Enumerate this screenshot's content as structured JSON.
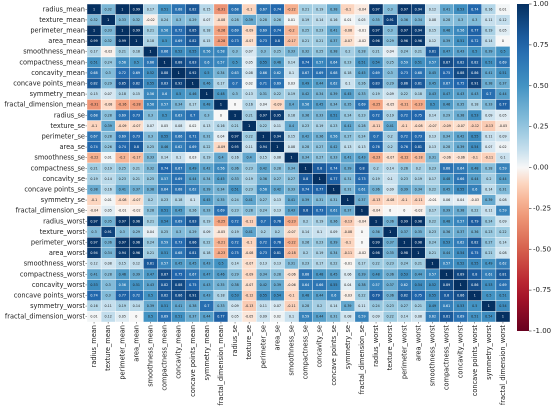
{
  "chart_data": {
    "type": "heatmap",
    "title": "",
    "xlabel": "",
    "ylabel": "",
    "variables": [
      "radius_mean",
      "texture_mean",
      "perimeter_mean",
      "area_mean",
      "smoothness_mean",
      "compactness_mean",
      "concavity_mean",
      "concave points_mean",
      "symmetry_mean",
      "fractal_dimension_mean",
      "radius_se",
      "texture_se",
      "perimeter_se",
      "area_se",
      "smoothness_se",
      "compactness_se",
      "concavity_se",
      "concave points_se",
      "symmetry_se",
      "fractal_dimension_se",
      "radius_worst",
      "texture_worst",
      "perimeter_worst",
      "area_worst",
      "smoothness_worst",
      "compactness_worst",
      "concavity_worst",
      "concave points_worst",
      "symmetry_worst",
      "fractal_dimension_worst"
    ],
    "matrix": [
      [
        1,
        0.32,
        1,
        0.99,
        0.17,
        0.51,
        0.68,
        0.82,
        0.15,
        -0.31,
        0.68,
        -0.1,
        0.67,
        0.74,
        -0.22,
        0.21,
        0.19,
        0.38,
        -0.1,
        -0.04,
        0.97,
        0.3,
        0.97,
        0.94,
        0.12,
        0.41,
        0.53,
        0.74,
        0.16,
        0.01
      ],
      [
        0.32,
        1,
        0.33,
        0.32,
        -0.02,
        0.24,
        0.3,
        0.29,
        0.07,
        -0.08,
        0.28,
        0.39,
        0.28,
        0.26,
        0.01,
        0.19,
        0.14,
        0.16,
        0.01,
        0.05,
        0.35,
        0.91,
        0.36,
        0.34,
        0.08,
        0.28,
        0.3,
        0.3,
        0.11,
        0.12
      ],
      [
        1,
        0.33,
        1,
        0.99,
        0.21,
        0.56,
        0.72,
        0.85,
        0.18,
        -0.26,
        0.69,
        -0.09,
        0.69,
        0.74,
        -0.2,
        0.25,
        0.23,
        0.41,
        -0.08,
        -0.01,
        0.97,
        0.3,
        0.97,
        0.94,
        0.15,
        0.46,
        0.56,
        0.77,
        0.19,
        0.05
      ],
      [
        0.99,
        0.32,
        0.99,
        1,
        0.18,
        0.5,
        0.69,
        0.82,
        0.15,
        -0.28,
        0.73,
        -0.07,
        0.73,
        0.8,
        -0.17,
        0.21,
        0.21,
        0.37,
        -0.07,
        -0.02,
        0.96,
        0.29,
        0.96,
        0.96,
        0.12,
        0.39,
        0.51,
        0.72,
        0.14,
        0
      ],
      [
        0.17,
        -0.02,
        0.21,
        0.18,
        1,
        0.66,
        0.52,
        0.55,
        0.56,
        0.58,
        0.3,
        0.07,
        0.3,
        0.25,
        0.33,
        0.32,
        0.25,
        0.38,
        0.2,
        0.28,
        0.21,
        0.04,
        0.24,
        0.21,
        0.81,
        0.47,
        0.43,
        0.5,
        0.39,
        0.5
      ],
      [
        0.51,
        0.24,
        0.56,
        0.5,
        0.66,
        1,
        0.88,
        0.83,
        0.6,
        0.57,
        0.5,
        0.05,
        0.55,
        0.46,
        0.14,
        0.74,
        0.57,
        0.64,
        0.23,
        0.51,
        0.54,
        0.25,
        0.59,
        0.51,
        0.57,
        0.87,
        0.82,
        0.82,
        0.51,
        0.69
      ],
      [
        0.68,
        0.3,
        0.72,
        0.69,
        0.52,
        0.88,
        1,
        0.92,
        0.5,
        0.34,
        0.63,
        0.08,
        0.66,
        0.62,
        0.1,
        0.67,
        0.69,
        0.68,
        0.18,
        0.45,
        0.69,
        0.3,
        0.73,
        0.68,
        0.45,
        0.75,
        0.88,
        0.86,
        0.41,
        0.51
      ],
      [
        0.82,
        0.29,
        0.85,
        0.82,
        0.55,
        0.83,
        0.92,
        1,
        0.46,
        0.17,
        0.7,
        0.02,
        0.71,
        0.69,
        0.03,
        0.49,
        0.44,
        0.62,
        0.1,
        0.26,
        0.83,
        0.29,
        0.86,
        0.81,
        0.45,
        0.67,
        0.75,
        0.91,
        0.38,
        0.37
      ],
      [
        0.15,
        0.07,
        0.18,
        0.15,
        0.56,
        0.6,
        0.5,
        0.46,
        1,
        0.48,
        0.3,
        0.13,
        0.31,
        0.22,
        0.19,
        0.42,
        0.34,
        0.39,
        0.45,
        0.33,
        0.19,
        0.09,
        0.22,
        0.18,
        0.43,
        0.47,
        0.43,
        0.43,
        0.7,
        0.44
      ],
      [
        -0.31,
        -0.08,
        -0.26,
        -0.28,
        0.58,
        0.57,
        0.34,
        0.17,
        0.48,
        1,
        0,
        0.16,
        0.04,
        -0.09,
        0.4,
        0.56,
        0.45,
        0.34,
        0.35,
        0.69,
        -0.25,
        -0.05,
        -0.21,
        -0.23,
        0.5,
        0.46,
        0.35,
        0.18,
        0.33,
        0.77
      ],
      [
        0.68,
        0.28,
        0.69,
        0.73,
        0.3,
        0.5,
        0.63,
        0.7,
        0.3,
        0,
        1,
        0.21,
        0.97,
        0.95,
        0.16,
        0.36,
        0.33,
        0.51,
        0.24,
        0.23,
        0.72,
        0.19,
        0.72,
        0.75,
        0.14,
        0.29,
        0.38,
        0.53,
        0.09,
        0.05
      ],
      [
        -0.1,
        0.39,
        -0.09,
        -0.07,
        0.07,
        0.05,
        0.08,
        0.02,
        0.13,
        0.16,
        0.21,
        1,
        0.22,
        0.11,
        0.4,
        0.23,
        0.19,
        0.23,
        0.41,
        0.28,
        -0.11,
        0.41,
        -0.1,
        -0.08,
        -0.07,
        -0.09,
        -0.07,
        -0.12,
        -0.13,
        -0.05
      ],
      [
        0.67,
        0.28,
        0.69,
        0.73,
        0.3,
        0.55,
        0.66,
        0.71,
        0.31,
        0.04,
        0.97,
        0.22,
        1,
        0.94,
        0.15,
        0.42,
        0.36,
        0.56,
        0.27,
        0.24,
        0.7,
        0.2,
        0.72,
        0.73,
        0.13,
        0.34,
        0.42,
        0.55,
        0.11,
        0.09
      ],
      [
        0.74,
        0.26,
        0.74,
        0.8,
        0.25,
        0.46,
        0.62,
        0.69,
        0.22,
        -0.09,
        0.95,
        0.11,
        0.94,
        1,
        0.08,
        0.28,
        0.27,
        0.42,
        0.13,
        0.13,
        0.76,
        0.2,
        0.76,
        0.81,
        0.13,
        0.28,
        0.39,
        0.54,
        0.07,
        0.02
      ],
      [
        -0.22,
        0.01,
        -0.2,
        -0.17,
        0.33,
        0.14,
        0.1,
        0.03,
        0.19,
        0.4,
        0.16,
        0.4,
        0.15,
        0.08,
        1,
        0.34,
        0.27,
        0.33,
        0.41,
        0.43,
        -0.23,
        -0.07,
        -0.22,
        -0.18,
        0.31,
        -0.06,
        -0.06,
        -0.1,
        -0.11,
        0.1
      ],
      [
        0.21,
        0.19,
        0.25,
        0.21,
        0.32,
        0.74,
        0.67,
        0.49,
        0.42,
        0.56,
        0.36,
        0.23,
        0.42,
        0.28,
        0.34,
        1,
        0.8,
        0.74,
        0.39,
        0.8,
        0.2,
        0.14,
        0.26,
        0.2,
        0.23,
        0.68,
        0.64,
        0.48,
        0.28,
        0.59
      ],
      [
        0.19,
        0.14,
        0.23,
        0.21,
        0.25,
        0.57,
        0.69,
        0.44,
        0.34,
        0.45,
        0.33,
        0.19,
        0.36,
        0.27,
        0.27,
        0.8,
        1,
        0.77,
        0.31,
        0.73,
        0.19,
        0.1,
        0.23,
        0.19,
        0.17,
        0.48,
        0.66,
        0.44,
        0.2,
        0.44
      ],
      [
        0.38,
        0.16,
        0.41,
        0.37,
        0.38,
        0.64,
        0.68,
        0.62,
        0.39,
        0.34,
        0.51,
        0.23,
        0.56,
        0.42,
        0.33,
        0.74,
        0.77,
        1,
        0.31,
        0.61,
        0.36,
        0.09,
        0.39,
        0.34,
        0.22,
        0.45,
        0.55,
        0.6,
        0.14,
        0.31
      ],
      [
        -0.1,
        0.01,
        -0.08,
        -0.07,
        0.2,
        0.23,
        0.18,
        0.1,
        0.45,
        0.35,
        0.24,
        0.41,
        0.27,
        0.13,
        0.41,
        0.39,
        0.31,
        0.31,
        1,
        0.37,
        -0.13,
        -0.08,
        -0.1,
        -0.11,
        -0.01,
        0.06,
        0.04,
        -0.03,
        0.39,
        0.08
      ],
      [
        -0.04,
        0.05,
        -0.01,
        -0.02,
        0.28,
        0.51,
        0.45,
        0.26,
        0.33,
        0.69,
        0.23,
        0.28,
        0.24,
        0.13,
        0.43,
        0.8,
        0.73,
        0.61,
        0.37,
        1,
        -0.04,
        0,
        0,
        -0.02,
        0.17,
        0.39,
        0.38,
        0.22,
        0.11,
        0.59
      ],
      [
        0.97,
        0.35,
        0.97,
        0.96,
        0.21,
        0.54,
        0.69,
        0.83,
        0.19,
        -0.25,
        0.72,
        -0.11,
        0.7,
        0.76,
        -0.23,
        0.2,
        0.19,
        0.36,
        -0.13,
        -0.04,
        1,
        0.36,
        0.99,
        0.98,
        0.22,
        0.48,
        0.57,
        0.79,
        0.24,
        0.09
      ],
      [
        0.3,
        0.91,
        0.3,
        0.29,
        0.04,
        0.25,
        0.3,
        0.29,
        0.09,
        -0.05,
        0.19,
        0.41,
        0.2,
        0.2,
        -0.07,
        0.14,
        0.1,
        0.09,
        -0.08,
        0,
        0.36,
        1,
        0.37,
        0.35,
        0.23,
        0.36,
        0.37,
        0.36,
        0.23,
        0.22
      ],
      [
        0.97,
        0.36,
        0.97,
        0.96,
        0.24,
        0.59,
        0.73,
        0.86,
        0.22,
        -0.21,
        0.72,
        -0.1,
        0.72,
        0.76,
        -0.22,
        0.26,
        0.23,
        0.39,
        -0.1,
        0,
        0.99,
        0.37,
        1,
        0.98,
        0.24,
        0.53,
        0.62,
        0.82,
        0.27,
        0.14
      ],
      [
        0.94,
        0.34,
        0.94,
        0.96,
        0.21,
        0.51,
        0.68,
        0.81,
        0.18,
        -0.23,
        0.75,
        -0.08,
        0.73,
        0.81,
        -0.18,
        0.2,
        0.19,
        0.34,
        -0.11,
        -0.02,
        0.98,
        0.35,
        0.98,
        1,
        0.21,
        0.44,
        0.54,
        0.75,
        0.21,
        0.08
      ],
      [
        0.12,
        0.08,
        0.15,
        0.12,
        0.81,
        0.57,
        0.45,
        0.45,
        0.43,
        0.5,
        0.14,
        -0.07,
        0.13,
        0.13,
        0.31,
        0.23,
        0.17,
        0.22,
        -0.01,
        0.17,
        0.22,
        0.23,
        0.24,
        0.21,
        1,
        0.57,
        0.52,
        0.55,
        0.49,
        0.62
      ],
      [
        0.41,
        0.28,
        0.46,
        0.39,
        0.47,
        0.87,
        0.75,
        0.67,
        0.47,
        0.46,
        0.29,
        -0.09,
        0.34,
        0.28,
        -0.06,
        0.68,
        0.48,
        0.45,
        0.06,
        0.39,
        0.48,
        0.36,
        0.53,
        0.44,
        0.57,
        1,
        0.89,
        0.8,
        0.61,
        0.81
      ],
      [
        0.53,
        0.3,
        0.56,
        0.51,
        0.43,
        0.82,
        0.88,
        0.75,
        0.43,
        0.35,
        0.38,
        -0.07,
        0.42,
        0.39,
        -0.06,
        0.64,
        0.66,
        0.55,
        0.04,
        0.38,
        0.57,
        0.37,
        0.62,
        0.54,
        0.52,
        0.89,
        1,
        0.86,
        0.53,
        0.69
      ],
      [
        0.74,
        0.3,
        0.77,
        0.72,
        0.5,
        0.82,
        0.86,
        0.91,
        0.43,
        0.18,
        0.53,
        -0.12,
        0.55,
        0.54,
        -0.1,
        0.48,
        0.44,
        0.6,
        -0.03,
        0.22,
        0.79,
        0.36,
        0.82,
        0.75,
        0.55,
        0.8,
        0.86,
        1,
        0.5,
        0.51
      ],
      [
        0.16,
        0.11,
        0.19,
        0.14,
        0.39,
        0.51,
        0.41,
        0.38,
        0.7,
        0.33,
        0.09,
        -0.13,
        0.11,
        0.07,
        -0.11,
        0.28,
        0.2,
        0.14,
        0.39,
        0.11,
        0.24,
        0.23,
        0.27,
        0.21,
        0.49,
        0.61,
        0.53,
        0.5,
        1,
        0.54
      ],
      [
        0.01,
        0.12,
        0.05,
        0,
        0.5,
        0.69,
        0.51,
        0.37,
        0.44,
        0.77,
        0.05,
        -0.05,
        0.09,
        0.02,
        0.1,
        0.59,
        0.44,
        0.31,
        0.08,
        0.59,
        0.09,
        0.22,
        0.14,
        0.08,
        0.62,
        0.81,
        0.69,
        0.51,
        0.54,
        1
      ]
    ],
    "colorbar": {
      "vmin": -1,
      "vmax": 1,
      "ticks": [
        "1.00",
        "0.75",
        "0.50",
        "0.25",
        "0.00",
        "-0.25",
        "-0.50",
        "-0.75",
        "-1.00"
      ],
      "tick_values": [
        1,
        0.75,
        0.5,
        0.25,
        0,
        -0.25,
        -0.5,
        -0.75,
        -1
      ]
    },
    "annotated": true,
    "colormap": "RdBu"
  },
  "colors": {
    "negative_end": "#67001f",
    "neutral": "#f7f7f7",
    "positive_end": "#053061",
    "cell_border": "#ffffff"
  }
}
